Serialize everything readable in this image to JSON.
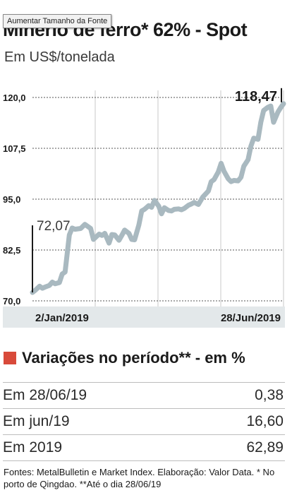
{
  "tooltip": "Aumentar Tamanho da Fonte",
  "chart_data": {
    "type": "line",
    "title": "Minério de ferro* 62% - Spot",
    "subtitle": "Em US$/tonelada",
    "ylim": [
      70,
      120
    ],
    "yticks": [
      "120,0",
      "107,5",
      "95,0",
      "82,5",
      "70,0"
    ],
    "ytick_values": [
      120,
      107.5,
      95,
      82.5,
      70
    ],
    "x_range": [
      "2019-01-02",
      "2019-06-28"
    ],
    "xtick_labels": [
      "2/Jan/2019",
      "28/Jun/2019"
    ],
    "start_label": "72,07",
    "end_label": "118,47",
    "x": [
      "2019-01-02",
      "2019-01-04",
      "2019-01-07",
      "2019-01-09",
      "2019-01-11",
      "2019-01-14",
      "2019-01-16",
      "2019-01-18",
      "2019-01-21",
      "2019-01-23",
      "2019-01-25",
      "2019-01-28",
      "2019-01-30",
      "2019-02-01",
      "2019-02-05",
      "2019-02-08",
      "2019-02-12",
      "2019-02-14",
      "2019-02-18",
      "2019-02-20",
      "2019-02-22",
      "2019-02-25",
      "2019-02-27",
      "2019-03-01",
      "2019-03-04",
      "2019-03-06",
      "2019-03-08",
      "2019-03-11",
      "2019-03-13",
      "2019-03-15",
      "2019-03-18",
      "2019-03-20",
      "2019-03-22",
      "2019-03-25",
      "2019-03-27",
      "2019-03-29",
      "2019-04-01",
      "2019-04-03",
      "2019-04-05",
      "2019-04-08",
      "2019-04-10",
      "2019-04-12",
      "2019-04-15",
      "2019-04-17",
      "2019-04-19",
      "2019-04-22",
      "2019-04-24",
      "2019-04-26",
      "2019-04-29",
      "2019-05-02",
      "2019-05-06",
      "2019-05-08",
      "2019-05-10",
      "2019-05-13",
      "2019-05-15",
      "2019-05-17",
      "2019-05-20",
      "2019-05-22",
      "2019-05-24",
      "2019-05-27",
      "2019-05-29",
      "2019-05-31",
      "2019-06-03",
      "2019-06-05",
      "2019-06-07",
      "2019-06-10",
      "2019-06-12",
      "2019-06-14",
      "2019-06-17",
      "2019-06-19",
      "2019-06-21",
      "2019-06-24",
      "2019-06-26",
      "2019-06-28"
    ],
    "values": [
      72.07,
      72.6,
      73.6,
      73.1,
      73.4,
      73.8,
      74.6,
      74.2,
      74.5,
      76.6,
      77.1,
      86.2,
      87.9,
      87.6,
      87.8,
      88.8,
      87.8,
      85.1,
      86.4,
      86.1,
      86.6,
      84.2,
      86.3,
      86.2,
      84.9,
      86.1,
      87.4,
      86.6,
      85.1,
      85.0,
      88.6,
      92.1,
      92.5,
      93.4,
      93.0,
      94.7,
      93.3,
      91.4,
      92.9,
      92.2,
      92.1,
      92.5,
      92.6,
      92.4,
      92.7,
      93.5,
      93.8,
      94.2,
      93.7,
      95.5,
      97.0,
      99.3,
      99.8,
      101.7,
      103.8,
      101.9,
      100.0,
      99.3,
      99.6,
      99.5,
      100.4,
      103.1,
      104.7,
      108.0,
      110.0,
      109.7,
      113.9,
      116.8,
      117.6,
      117.9,
      113.9,
      116.4,
      117.5,
      118.47
    ]
  },
  "variations": {
    "title": "Variações no período** - em %",
    "rows": [
      {
        "label": "Em 28/06/19",
        "value": "0,38"
      },
      {
        "label": "Em jun/19",
        "value": "16,60"
      },
      {
        "label": "Em 2019",
        "value": "62,89"
      }
    ]
  },
  "colors": {
    "line": "#a9b9c0",
    "accent": "#d84a3a",
    "axis_band": "#e3e8ea",
    "grid": "#c9c9c9"
  },
  "footer": "Fontes: MetalBulletin e Market Index. Elaboração: Valor Data. * No porto de Qingdao. **Até o dia 28/06/19"
}
